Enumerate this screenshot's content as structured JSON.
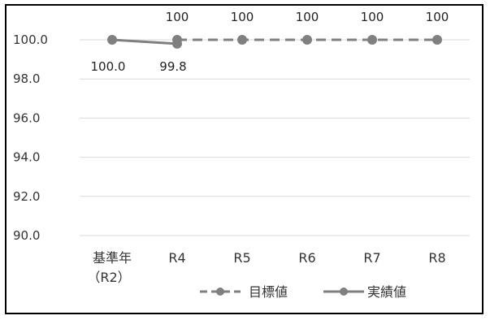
{
  "chart_data": {
    "type": "line",
    "categories": [
      "基準年",
      "R4",
      "R5",
      "R6",
      "R7",
      "R8"
    ],
    "category_sublabels": [
      "（R2）",
      "",
      "",
      "",
      "",
      ""
    ],
    "yticks": [
      "100.0",
      "98.0",
      "96.0",
      "94.0",
      "92.0",
      "90.0"
    ],
    "ylim": [
      90,
      100
    ],
    "grid": true,
    "legend_position": "bottom",
    "series": [
      {
        "name": "目標値",
        "style": "dashed",
        "color": "#808080",
        "values": [
          100,
          100,
          100,
          100,
          100,
          100
        ],
        "labels": [
          "",
          "100",
          "100",
          "100",
          "100",
          "100"
        ]
      },
      {
        "name": "実績値",
        "style": "solid",
        "color": "#808080",
        "values": [
          100.0,
          99.8,
          null,
          null,
          null,
          null
        ],
        "labels": [
          "100.0",
          "99.8",
          "",
          "",
          "",
          ""
        ]
      }
    ]
  }
}
